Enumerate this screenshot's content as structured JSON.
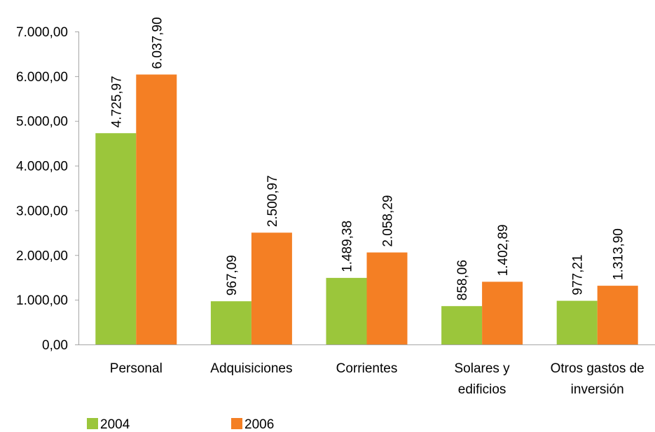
{
  "chart_data": {
    "type": "bar",
    "title": "",
    "xlabel": "",
    "ylabel": "",
    "ylim": [
      0,
      7000
    ],
    "yticks": [
      "0,00",
      "1.000,00",
      "2.000,00",
      "3.000,00",
      "4.000,00",
      "5.000,00",
      "6.000,00",
      "7.000,00"
    ],
    "categories": [
      [
        "Personal"
      ],
      [
        "Adquisiciones"
      ],
      [
        "Corrientes"
      ],
      [
        "Solares y",
        "edificios"
      ],
      [
        "Otros gastos de",
        "inversión"
      ]
    ],
    "series": [
      {
        "name": "2004",
        "color": "#9bc63b",
        "values": [
          4725.97,
          967.09,
          1489.38,
          858.06,
          977.21
        ],
        "labels": [
          "4.725,97",
          "967,09",
          "1.489,38",
          "858,06",
          "977,21"
        ]
      },
      {
        "name": "2006",
        "color": "#f47f24",
        "values": [
          6037.9,
          2500.97,
          2058.29,
          1402.89,
          1313.9
        ],
        "labels": [
          "6.037,90",
          "2.500,97",
          "2.058,29",
          "1.402,89",
          "1.313,90"
        ]
      }
    ],
    "grid": false,
    "legend_position": "bottom-left"
  }
}
